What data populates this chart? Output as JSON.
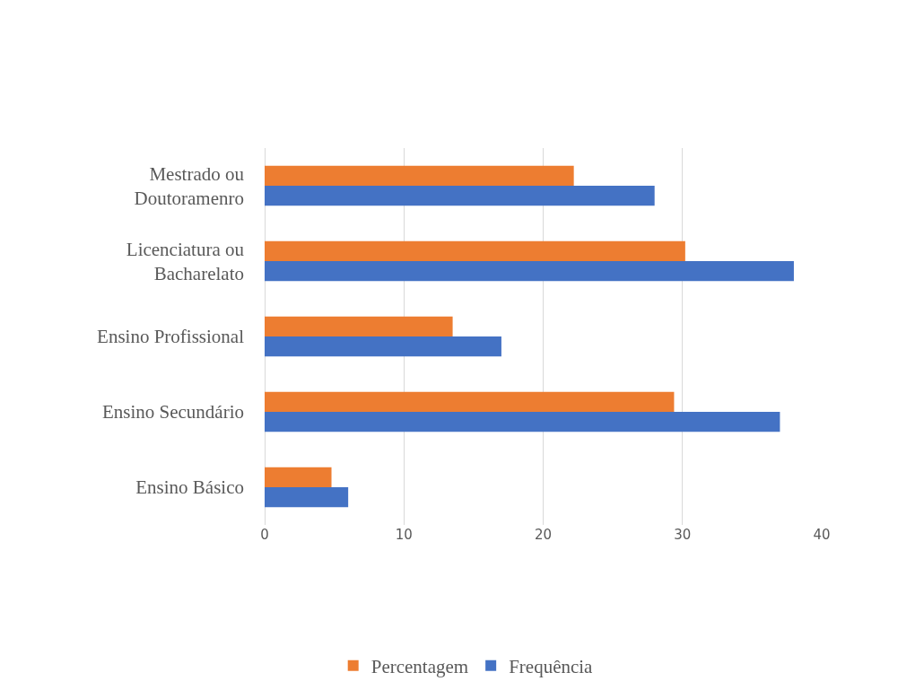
{
  "chart_data": {
    "type": "bar",
    "orientation": "horizontal",
    "categories": [
      "Mestrado ou Doutoramenro",
      "Licenciatura ou Bacharelato",
      "Ensino Profissional",
      "Ensino Secundário",
      "Ensino Básico"
    ],
    "series": [
      {
        "name": "Percentagem",
        "color": "#ed7d31",
        "values": [
          22.2,
          30.2,
          13.5,
          29.4,
          4.8
        ]
      },
      {
        "name": "Frequência",
        "color": "#4472c4",
        "values": [
          28,
          38,
          17,
          37,
          6
        ]
      }
    ],
    "xlim": [
      0,
      40
    ],
    "xticks": [
      0,
      10,
      20,
      30,
      40
    ],
    "grid": "x",
    "legend": "bottom"
  }
}
